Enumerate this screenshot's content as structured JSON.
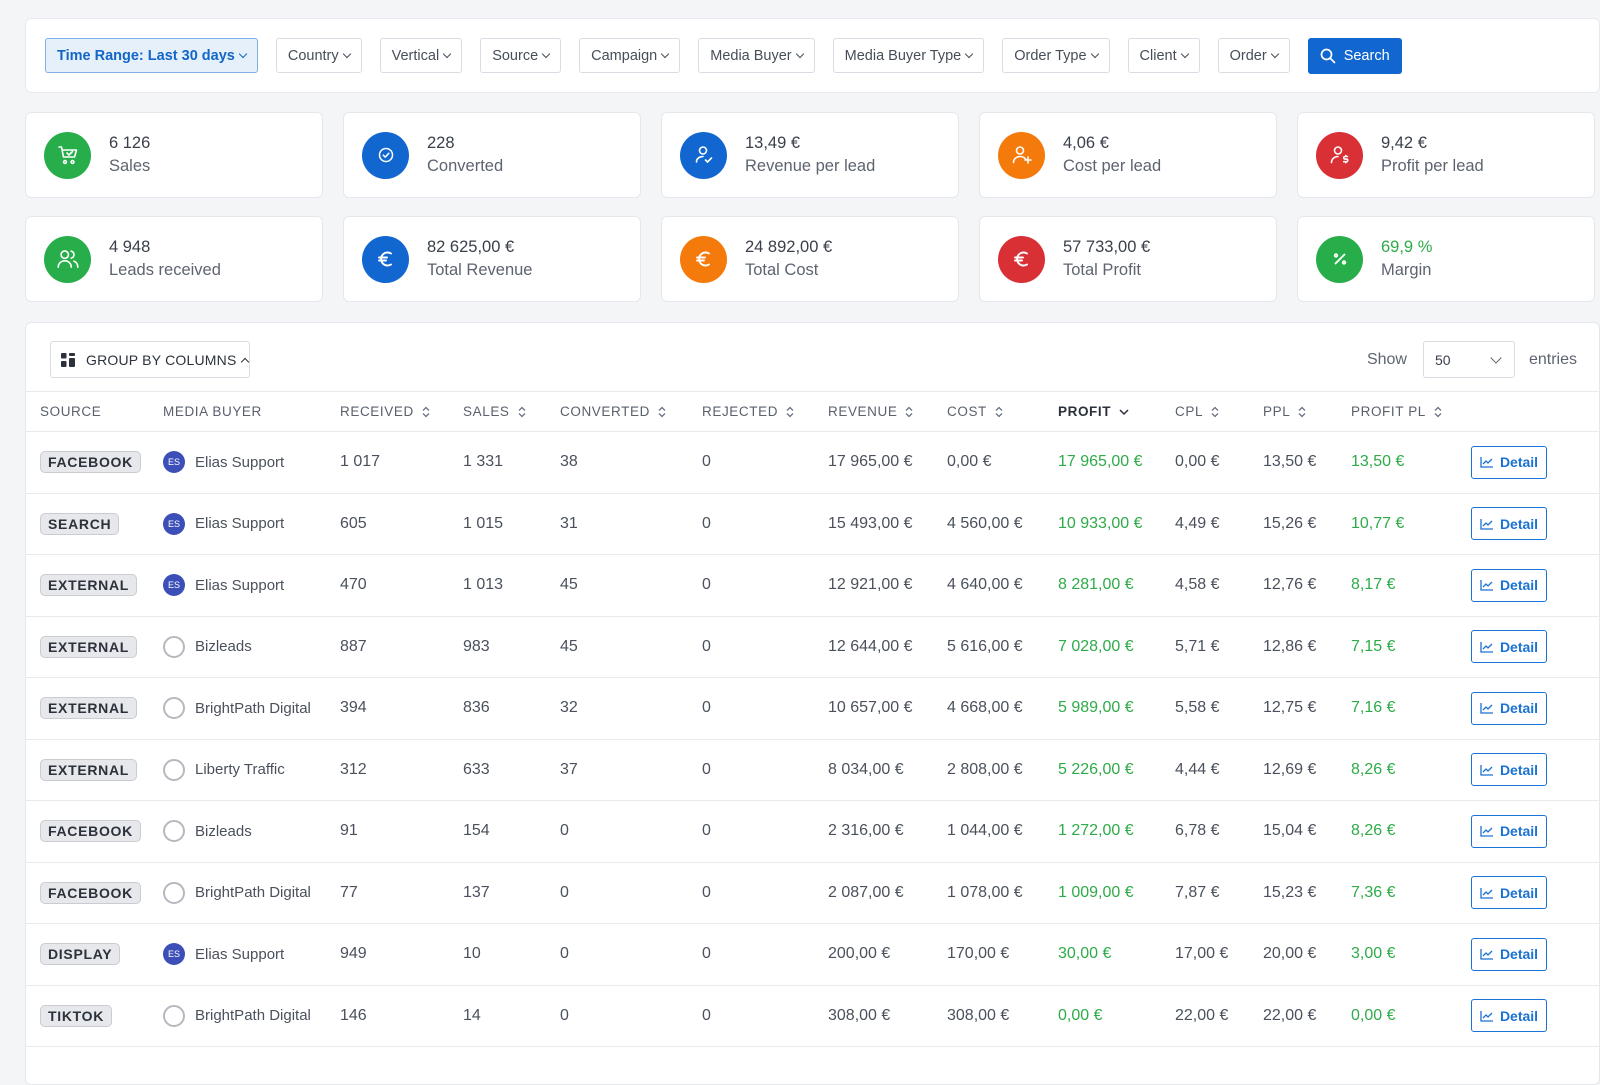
{
  "filters": {
    "time_range": "Time Range: Last 30 days",
    "country": "Country",
    "vertical": "Vertical",
    "source": "Source",
    "campaign": "Campaign",
    "media_buyer": "Media Buyer",
    "media_buyer_type": "Media Buyer Type",
    "order_type": "Order Type",
    "client": "Client",
    "order": "Order",
    "search": "Search"
  },
  "kpis": [
    {
      "value": "6 126",
      "label": "Sales",
      "icon": "cart-check-icon",
      "color": "#27ae4a"
    },
    {
      "value": "228",
      "label": "Converted",
      "icon": "check-circle-icon",
      "color": "#1167cf"
    },
    {
      "value": "13,49 €",
      "label": "Revenue per lead",
      "icon": "user-check-icon",
      "color": "#1167cf"
    },
    {
      "value": "4,06 €",
      "label": "Cost per lead",
      "icon": "user-plus-icon",
      "color": "#f57a0c"
    },
    {
      "value": "9,42 €",
      "label": "Profit per lead",
      "icon": "user-dollar-icon",
      "color": "#d93036"
    },
    {
      "value": "4 948",
      "label": "Leads received",
      "icon": "users-icon",
      "color": "#27ae4a"
    },
    {
      "value": "82 625,00 €",
      "label": "Total Revenue",
      "icon": "euro-icon",
      "color": "#1167cf"
    },
    {
      "value": "24 892,00 €",
      "label": "Total Cost",
      "icon": "euro-icon",
      "color": "#f57a0c"
    },
    {
      "value": "57 733,00 €",
      "label": "Total Profit",
      "icon": "euro-icon",
      "color": "#d93036"
    },
    {
      "value": "69,9 %",
      "label": "Margin",
      "icon": "percent-icon",
      "color": "#27ae4a"
    }
  ],
  "table_controls": {
    "group_by": "GROUP BY COLUMNS",
    "show_label": "Show",
    "entries_value": "50",
    "entries_label": "entries"
  },
  "columns": [
    "SOURCE",
    "MEDIA BUYER",
    "RECEIVED",
    "SALES",
    "CONVERTED",
    "REJECTED",
    "REVENUE",
    "COST",
    "PROFIT",
    "CPL",
    "PPL",
    "PROFIT PL"
  ],
  "rows": [
    {
      "source": "FACEBOOK",
      "buyer": "Elias Support",
      "avatar": "ES",
      "received": "1 017",
      "sales": "1 331",
      "converted": "38",
      "rejected": "0",
      "revenue": "17 965,00 €",
      "cost": "0,00 €",
      "profit": "17 965,00 €",
      "cpl": "0,00 €",
      "ppl": "13,50 €",
      "profit_pl": "13,50 €"
    },
    {
      "source": "SEARCH",
      "buyer": "Elias Support",
      "avatar": "ES",
      "received": "605",
      "sales": "1 015",
      "converted": "31",
      "rejected": "0",
      "revenue": "15 493,00 €",
      "cost": "4 560,00 €",
      "profit": "10 933,00 €",
      "cpl": "4,49 €",
      "ppl": "15,26 €",
      "profit_pl": "10,77 €"
    },
    {
      "source": "EXTERNAL",
      "buyer": "Elias Support",
      "avatar": "ES",
      "received": "470",
      "sales": "1 013",
      "converted": "45",
      "rejected": "0",
      "revenue": "12 921,00 €",
      "cost": "4 640,00 €",
      "profit": "8 281,00 €",
      "cpl": "4,58 €",
      "ppl": "12,76 €",
      "profit_pl": "8,17 €"
    },
    {
      "source": "EXTERNAL",
      "buyer": "Bizleads",
      "avatar": "",
      "received": "887",
      "sales": "983",
      "converted": "45",
      "rejected": "0",
      "revenue": "12 644,00 €",
      "cost": "5 616,00 €",
      "profit": "7 028,00 €",
      "cpl": "5,71 €",
      "ppl": "12,86 €",
      "profit_pl": "7,15 €"
    },
    {
      "source": "EXTERNAL",
      "buyer": "BrightPath Digital",
      "avatar": "",
      "received": "394",
      "sales": "836",
      "converted": "32",
      "rejected": "0",
      "revenue": "10 657,00 €",
      "cost": "4 668,00 €",
      "profit": "5 989,00 €",
      "cpl": "5,58 €",
      "ppl": "12,75 €",
      "profit_pl": "7,16 €"
    },
    {
      "source": "EXTERNAL",
      "buyer": "Liberty Traffic",
      "avatar": "",
      "received": "312",
      "sales": "633",
      "converted": "37",
      "rejected": "0",
      "revenue": "8 034,00 €",
      "cost": "2 808,00 €",
      "profit": "5 226,00 €",
      "cpl": "4,44 €",
      "ppl": "12,69 €",
      "profit_pl": "8,26 €"
    },
    {
      "source": "FACEBOOK",
      "buyer": "Bizleads",
      "avatar": "",
      "received": "91",
      "sales": "154",
      "converted": "0",
      "rejected": "0",
      "revenue": "2 316,00 €",
      "cost": "1 044,00 €",
      "profit": "1 272,00 €",
      "cpl": "6,78 €",
      "ppl": "15,04 €",
      "profit_pl": "8,26 €"
    },
    {
      "source": "FACEBOOK",
      "buyer": "BrightPath Digital",
      "avatar": "",
      "received": "77",
      "sales": "137",
      "converted": "0",
      "rejected": "0",
      "revenue": "2 087,00 €",
      "cost": "1 078,00 €",
      "profit": "1 009,00 €",
      "cpl": "7,87 €",
      "ppl": "15,23 €",
      "profit_pl": "7,36 €"
    },
    {
      "source": "DISPLAY",
      "buyer": "Elias Support",
      "avatar": "ES",
      "received": "949",
      "sales": "10",
      "converted": "0",
      "rejected": "0",
      "revenue": "200,00 €",
      "cost": "170,00 €",
      "profit": "30,00 €",
      "cpl": "17,00 €",
      "ppl": "20,00 €",
      "profit_pl": "3,00 €"
    },
    {
      "source": "TIKTOK",
      "buyer": "BrightPath Digital",
      "avatar": "",
      "received": "146",
      "sales": "14",
      "converted": "0",
      "rejected": "0",
      "revenue": "308,00 €",
      "cost": "308,00 €",
      "profit": "0,00 €",
      "cpl": "22,00 €",
      "ppl": "22,00 €",
      "profit_pl": "0,00 €"
    }
  ],
  "detail_label": "Detail"
}
